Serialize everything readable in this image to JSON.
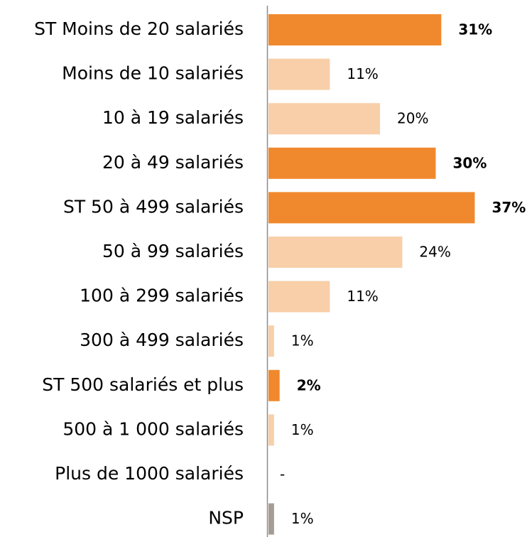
{
  "chart_data": {
    "type": "bar",
    "orientation": "horizontal",
    "categories": [
      "ST Moins de 20 salariés",
      "Moins de 10 salariés",
      "10 à 19 salariés",
      "20 à 49 salariés",
      "ST 50 à 499 salariés",
      "50 à 99 salariés",
      "100 à 299 salariés",
      "300 à 499 salariés",
      "ST 500 salariés et plus",
      "500 à 1 000 salariés",
      "Plus de 1000 salariés",
      "NSP"
    ],
    "values": [
      31,
      11,
      20,
      30,
      37,
      24,
      11,
      1,
      2,
      1,
      null,
      1
    ],
    "value_labels": [
      "31%",
      "11%",
      "20%",
      "30%",
      "37%",
      "24%",
      "11%",
      "1%",
      "2%",
      "1%",
      "-",
      "1%"
    ],
    "colors": [
      "#f0892d",
      "#f8cfa8",
      "#f8cfa8",
      "#f0892d",
      "#f0892d",
      "#f8cfa8",
      "#f8cfa8",
      "#f8cfa8",
      "#f0892d",
      "#f8cfa8",
      "#f8cfa8",
      "#a59c94"
    ],
    "bold_labels": [
      true,
      false,
      false,
      true,
      true,
      false,
      false,
      false,
      true,
      false,
      false,
      false
    ]
  }
}
